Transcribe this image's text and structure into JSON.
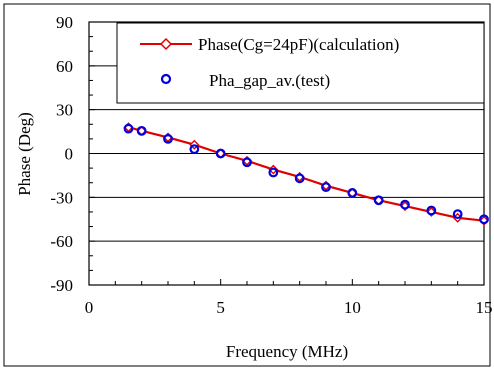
{
  "chart_data": {
    "type": "line",
    "title": "",
    "xlabel": "Frequency (MHz)",
    "ylabel": "Phase (Deg)",
    "xlim": [
      0,
      15
    ],
    "ylim": [
      -90,
      90
    ],
    "xticks": [
      0,
      5,
      10,
      15
    ],
    "yticks": [
      -90,
      -60,
      -30,
      0,
      30,
      60,
      90
    ],
    "xtick_labels": [
      "0",
      "5",
      "10",
      "15"
    ],
    "ytick_labels": [
      "-90",
      "-60",
      "-30",
      "0",
      "30",
      "60",
      "90"
    ],
    "grid": "horizontal",
    "legend_position": "top-right",
    "series": [
      {
        "name": "Phase(Cg=24pF)(calculation)",
        "style": "line-diamond",
        "color": "#e00000",
        "x": [
          1.5,
          2,
          3,
          4,
          5,
          6,
          7,
          8,
          9,
          10,
          11,
          12,
          13,
          14,
          15
        ],
        "y": [
          18,
          15.5,
          11,
          6,
          0,
          -5,
          -11,
          -16,
          -22,
          -27,
          -32,
          -36,
          -40,
          -44,
          -46
        ]
      },
      {
        "name": "Pha_gap_av.(test)",
        "style": "marker-circle",
        "color": "#0000e0",
        "x": [
          1.5,
          2,
          3,
          4,
          5,
          6,
          7,
          8,
          9,
          10,
          11,
          12,
          13,
          14,
          15
        ],
        "y": [
          17,
          15.5,
          10,
          3,
          0,
          -6,
          -13,
          -17,
          -23,
          -27,
          -32,
          -35,
          -39,
          -41.5,
          -45
        ]
      }
    ]
  }
}
